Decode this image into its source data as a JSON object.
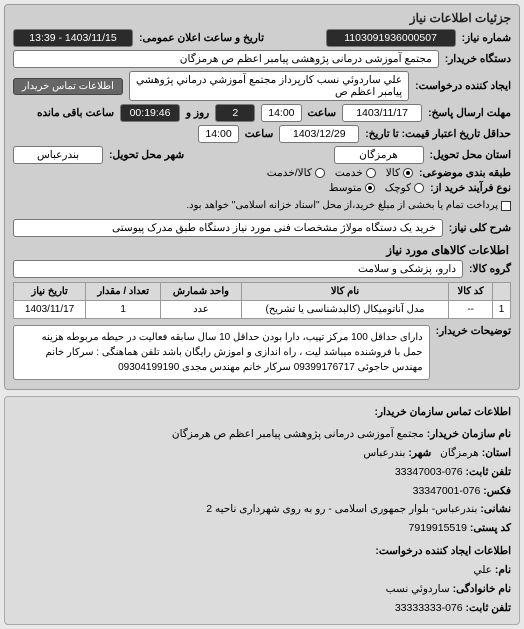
{
  "panel_title": "جزئیات اطلاعات نیاز",
  "header": {
    "need_no_label": "شماره نیاز:",
    "need_no": "1103091936000507",
    "announce_label": "تاریخ و ساعت اعلان عمومی:",
    "announce_date": "1403/11/15 - 13:39",
    "buyer_org_label": "دستگاه خریدار:",
    "buyer_org": "مجتمع آموزشی درمانی پژوهشی پیامبر اعظم ص  هرمزگان",
    "requester_label": "ایجاد کننده درخواست:",
    "requester": "علي ساردوئي نسب کارپرداز مجتمع آموزشي درماني پژوهشي پيامبر اعظم ص",
    "contact_btn": "اطلاعات تماس خریدار",
    "deadline_send_label": "مهلت ارسال پاسخ:",
    "deadline_send_date": "1403/11/17",
    "deadline_send_time_label": "ساعت",
    "deadline_send_time": "14:00",
    "remaining_days": "2",
    "remaining_days_label": "روز و",
    "remaining_time": "00:19:46",
    "remaining_suffix": "ساعت باقی مانده",
    "valid_until_label": "تا تاریخ:",
    "valid_label": "حداقل تاریخ اعتبار قیمت: تا تاریخ:",
    "valid_date": "1403/12/29",
    "valid_time_label": "ساعت",
    "valid_time": "14:00",
    "delivery_state_label": "استان محل تحویل:",
    "delivery_state": "هرمزگان",
    "delivery_city_label": "شهر محل تحویل:",
    "delivery_city": "بندرعباس",
    "category_label": "طبقه بندی موضوعی:",
    "cat_opts": [
      "کالا",
      "خدمت",
      "کالا/خدمت"
    ],
    "cat_selected": 0,
    "process_label": "نوع فرآیند خرید از:",
    "proc_opts": [
      "کوچک",
      "متوسط"
    ],
    "proc_selected": 1,
    "proc_check_label": "پرداخت تمام یا بخشی از مبلغ خرید،از محل \"اسناد خزانه اسلامی\" خواهد بود."
  },
  "summary": {
    "title_label": "شرح کلی نیاز:",
    "title": "خرید یک دستگاه مولاژ مشخصات فنی مورد نیاز دستگاه طبق مدرک پیوستی"
  },
  "goods": {
    "section": "اطلاعات کالاهای مورد نیاز",
    "group_label": "گروه کالا:",
    "group": "دارو، پزشکی و سلامت",
    "table": {
      "columns": [
        "",
        "کد کالا",
        "نام کالا",
        "واحد شمارش",
        "تعداد / مقدار",
        "تاریخ نیاز"
      ],
      "rows": [
        [
          "1",
          "--",
          "مدل آناتومیکال (کالبدشناسی یا تشریح)",
          "عدد",
          "1",
          "1403/11/17"
        ]
      ]
    },
    "notes_label": "توضیحات خریدار:",
    "notes": "دارای حداقل 100 مرکز تپیب، دارا بودن حداقل 10 سال سابقه فعالیت در حیطه مربوطه هزینه حمل با فروشنده میباشد لیت ، راه اندازی و اموزش رایگان باشد تلفن هماهنگی : سرکار خانم مهندس حاجوئی 09399176717 سرکار خانم مهندس مجدی 09304199190"
  },
  "contact": {
    "section": "اطلاعات تماس سازمان خریدار:",
    "org_label": "نام سازمان خریدار:",
    "org": "مجتمع آموزشی درمانی پژوهشی پیامبر اعظم ص هرمزگان",
    "state_label": "استان:",
    "state": "هرمزگان",
    "city_label": "شهر:",
    "city": "بندرعباس",
    "phone_label": "تلفن ثابت:",
    "phone": "076-33347003",
    "fax_label": "فکس:",
    "fax": "076-33347001",
    "address_label": "نشانی:",
    "address": "بندرعباس- بلوار جمهوری اسلامی - رو به روی شهرداری ناحیه 2",
    "postcode_label": "کد پستی:",
    "postcode": "7919915519",
    "creator_section": "اطلاعات ایجاد کننده درخواست:",
    "fname_label": "نام:",
    "fname": "علي",
    "lname_label": "نام خانوادگی:",
    "lname": "ساردوئي نسب",
    "cphone_label": "تلفن ثابت:",
    "cphone": "076-33333333"
  }
}
